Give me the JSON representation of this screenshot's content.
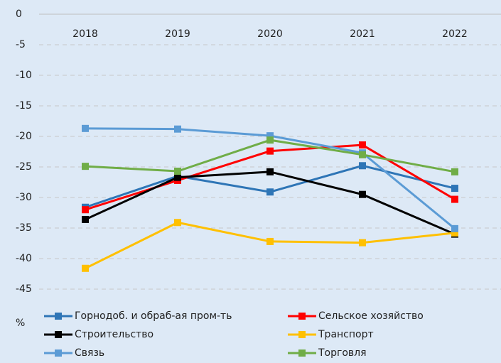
{
  "chart_data": {
    "type": "line",
    "unit_label": "%",
    "categories": [
      "2018",
      "2019",
      "2020",
      "2021",
      "2022"
    ],
    "ylim": [
      -45,
      0
    ],
    "yticks": [
      0,
      -5,
      -10,
      -15,
      -20,
      -25,
      -30,
      -35,
      -40,
      -45
    ],
    "grid": true,
    "legend": "bottom",
    "series": [
      {
        "name": "Горнодоб. и обраб-ая пром-ть",
        "color": "#2e75b6",
        "values": [
          -31.6,
          -26.5,
          -29.1,
          -24.8,
          -28.5
        ]
      },
      {
        "name": "Сельское хозяйство",
        "color": "#ff0000",
        "values": [
          -32.0,
          -27.2,
          -22.4,
          -21.4,
          -30.3
        ]
      },
      {
        "name": "Строительство",
        "color": "#000000",
        "values": [
          -33.6,
          -26.7,
          -25.8,
          -29.5,
          -36.0
        ]
      },
      {
        "name": "Транспорт",
        "color": "#ffc000",
        "values": [
          -41.6,
          -34.1,
          -37.2,
          -37.4,
          -35.8
        ]
      },
      {
        "name": "Связь",
        "color": "#5b9bd5",
        "values": [
          -18.7,
          -18.8,
          -19.9,
          -22.7,
          -35.1
        ]
      },
      {
        "name": "Торговля",
        "color": "#70ad47",
        "values": [
          -24.9,
          -25.7,
          -20.6,
          -23.0,
          -25.8
        ]
      }
    ]
  }
}
